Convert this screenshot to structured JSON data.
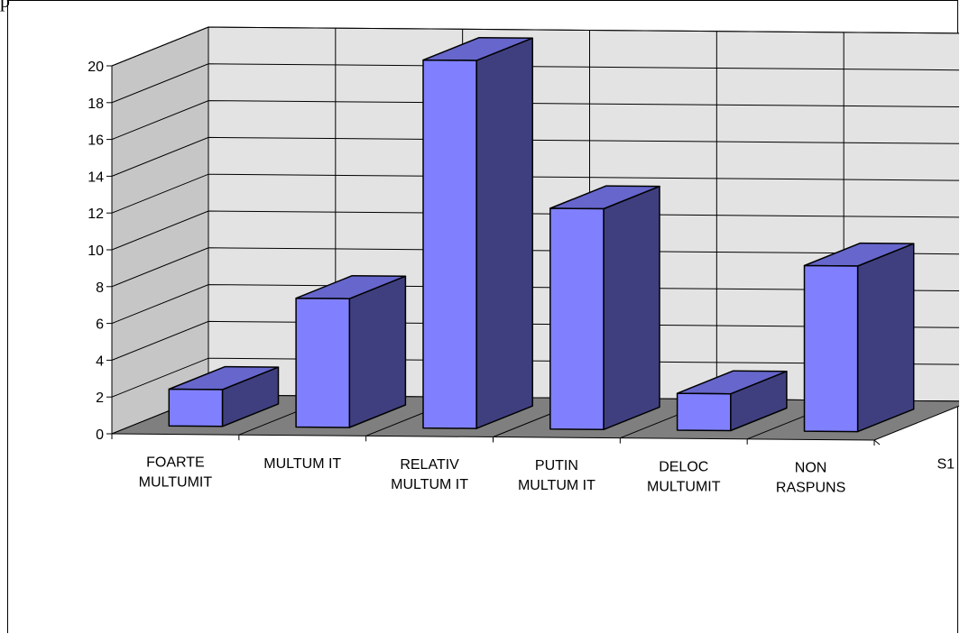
{
  "page": {
    "top_fragment": "p"
  },
  "chart_data": {
    "type": "bar",
    "style": "3d-column",
    "categories": [
      [
        "FOARTE",
        "MULTUMIT"
      ],
      [
        "MULTUM IT"
      ],
      [
        "RELATIV",
        "MULTUM IT"
      ],
      [
        "PUTIN",
        "MULTUM IT"
      ],
      [
        "DELOC",
        "MULTUMIT"
      ],
      [
        "NON",
        "RASPUNS"
      ]
    ],
    "series": [
      {
        "name": "S1",
        "values": [
          2,
          7,
          20,
          12,
          2,
          9
        ]
      }
    ],
    "ylim": [
      0,
      20
    ],
    "yticks": [
      "0",
      "2",
      "4",
      "6",
      "8",
      "10",
      "12",
      "14",
      "16",
      "18",
      "20"
    ],
    "grid": true,
    "colors": {
      "bar_front": "#8080ff",
      "bar_top": "#6666cc",
      "bar_side": "#3f3f80",
      "back_wall": "#e3e3e3",
      "side_wall": "#c6c6c6",
      "floor": "#7f7f7f"
    }
  }
}
